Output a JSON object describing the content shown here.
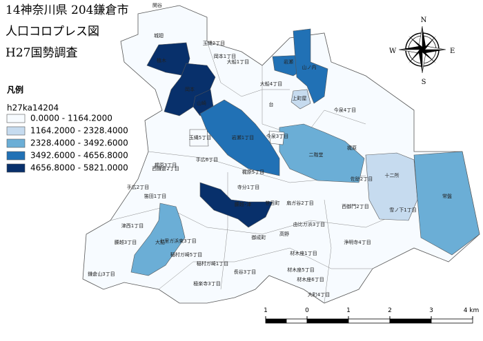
{
  "title": [
    "14神奈川県 204鎌倉市",
    "人口コロプレス図",
    "H27国勢調査"
  ],
  "legend": {
    "title": "凡例",
    "field": "h27ka14204",
    "classes": [
      {
        "label": "0.0000 - 1164.2000",
        "color": "#f7fbff"
      },
      {
        "label": "1164.2000 - 2328.4000",
        "color": "#c6dbef"
      },
      {
        "label": "2328.4000 - 3492.6000",
        "color": "#6baed6"
      },
      {
        "label": "3492.6000 - 4656.8000",
        "color": "#2171b5"
      },
      {
        "label": "4656.8000 - 5821.0000",
        "color": "#08306b"
      }
    ]
  },
  "compass": {
    "n": "N",
    "e": "E",
    "s": "S",
    "w": "W"
  },
  "scale_bar": {
    "ticks": [
      "1",
      "0",
      "1",
      "2",
      "3",
      "4 km"
    ]
  },
  "districts": [
    {
      "name": "関谷",
      "color": "#c6dbef"
    },
    {
      "name": "城廻",
      "color": "#2171b5"
    },
    {
      "name": "植木",
      "color": "#08306b"
    },
    {
      "name": "岡本",
      "color": "#08306b"
    },
    {
      "name": "山崎",
      "color": "#08306b"
    },
    {
      "name": "岩瀬1丁目",
      "color": "#2171b5"
    },
    {
      "name": "岩瀬",
      "color": "#2171b5"
    },
    {
      "name": "山ノ内",
      "color": "#2171b5"
    },
    {
      "name": "二階堂",
      "color": "#6baed6"
    },
    {
      "name": "十二所",
      "color": "#c6dbef"
    },
    {
      "name": "常盤",
      "color": "#6baed6"
    },
    {
      "name": "腰越･津",
      "color": "#08306b"
    },
    {
      "name": "大船",
      "color": "#6baed6"
    },
    {
      "name": "上町屋",
      "color": "#c6dbef"
    },
    {
      "name": "玉縄5丁目",
      "color": "#f7fbff"
    },
    {
      "name": "玉縄2丁目",
      "color": "#f7fbff"
    },
    {
      "name": "岡本1丁目",
      "color": "#f7fbff"
    },
    {
      "name": "大船1丁目",
      "color": "#f7fbff"
    },
    {
      "name": "大船4丁目",
      "color": "#f7fbff"
    },
    {
      "name": "台",
      "color": "#c6dbef"
    },
    {
      "name": "今泉3丁目",
      "color": "#f7fbff"
    },
    {
      "name": "今泉4丁目",
      "color": "#f7fbff"
    },
    {
      "name": "梶原",
      "color": "#f7fbff"
    },
    {
      "name": "梶原3丁目",
      "color": "#f7fbff"
    },
    {
      "name": "梶原5丁目",
      "color": "#f7fbff"
    },
    {
      "name": "寺分1丁目",
      "color": "#f7fbff"
    },
    {
      "name": "手広6丁目",
      "color": "#f7fbff"
    },
    {
      "name": "手広2丁目",
      "color": "#f7fbff"
    },
    {
      "name": "笛田1丁目",
      "color": "#f7fbff"
    },
    {
      "name": "西鎌倉2丁目",
      "color": "#f7fbff"
    },
    {
      "name": "津西1丁目",
      "color": "#f7fbff"
    },
    {
      "name": "腰越3丁目",
      "color": "#f7fbff"
    },
    {
      "name": "鎌倉山3丁目",
      "color": "#f7fbff"
    },
    {
      "name": "七里ガ浜東3丁目",
      "color": "#f7fbff"
    },
    {
      "name": "稲村ガ崎5丁目",
      "color": "#f7fbff"
    },
    {
      "name": "稲村ガ崎1丁目",
      "color": "#f7fbff"
    },
    {
      "name": "極楽寺3丁目",
      "color": "#f7fbff"
    },
    {
      "name": "長谷3丁目",
      "color": "#f7fbff"
    },
    {
      "name": "御成町",
      "color": "#f7fbff"
    },
    {
      "name": "由比ガ浜3丁目",
      "color": "#f7fbff"
    },
    {
      "name": "材木座1丁目",
      "color": "#f7fbff"
    },
    {
      "name": "材木座5丁目",
      "color": "#f7fbff"
    },
    {
      "name": "材木座6丁目",
      "color": "#f7fbff"
    },
    {
      "name": "大町4丁目",
      "color": "#f7fbff"
    },
    {
      "name": "浄明寺4丁目",
      "color": "#f7fbff"
    },
    {
      "name": "雪ノ下1丁目",
      "color": "#f7fbff"
    },
    {
      "name": "西御門2丁目",
      "color": "#f7fbff"
    },
    {
      "name": "佐助2丁目",
      "color": "#f7fbff"
    },
    {
      "name": "扇ガ谷2丁目",
      "color": "#f7fbff"
    },
    {
      "name": "笹目町",
      "color": "#f7fbff"
    },
    {
      "name": "高野",
      "color": "#f7fbff"
    }
  ]
}
